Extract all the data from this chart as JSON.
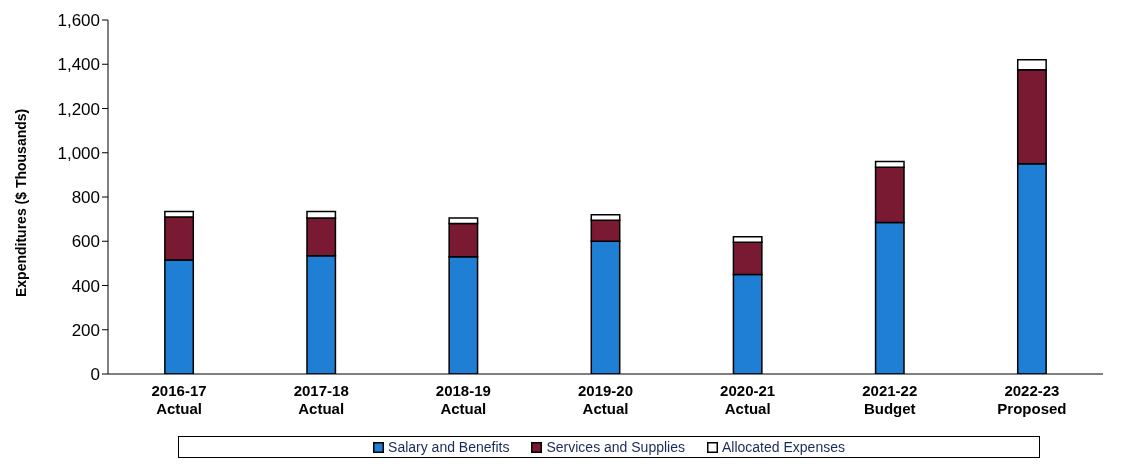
{
  "chart_data": {
    "type": "bar",
    "stacked": true,
    "ylabel": "Expenditures ($ Thousands)",
    "categories": [
      "2016-17\nActual",
      "2017-18\nActual",
      "2018-19\nActual",
      "2019-20\nActual",
      "2020-21\nActual",
      "2021-22\nBudget",
      "2022-23\nProposed"
    ],
    "series": [
      {
        "name": "Salary and Benefits",
        "color": "#1f7fd4",
        "values": [
          515,
          535,
          530,
          600,
          450,
          685,
          950
        ]
      },
      {
        "name": "Services and Supplies",
        "color": "#7a1a32",
        "values": [
          195,
          170,
          150,
          95,
          145,
          250,
          425
        ]
      },
      {
        "name": "Allocated Expenses",
        "color": "#ffffff",
        "values": [
          25,
          30,
          25,
          25,
          25,
          25,
          45
        ]
      }
    ],
    "ylim": [
      0,
      1600
    ],
    "yticks": [
      0,
      200,
      400,
      600,
      800,
      {
        "value": 1000,
        "label": "1,000"
      },
      {
        "value": 1200,
        "label": "1,200"
      },
      {
        "value": 1400,
        "label": "1,400"
      },
      {
        "value": 1600,
        "label": "1,600"
      }
    ],
    "grid": false,
    "legend": "bottom"
  }
}
